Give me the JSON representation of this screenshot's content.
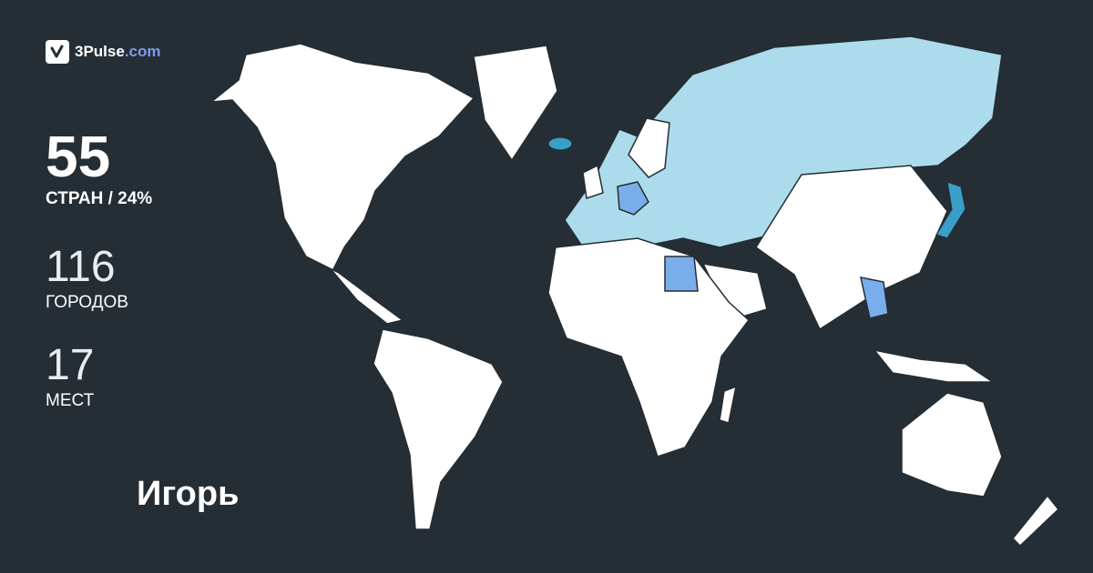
{
  "brand": {
    "name": "3Pulse",
    "domain": ".com",
    "icon": "pulse-check-icon"
  },
  "stats": {
    "countries": {
      "value": "55",
      "label": "СТРАН / 24%"
    },
    "cities": {
      "value": "116",
      "label": "ГОРОДОВ"
    },
    "places": {
      "value": "17",
      "label": "МЕСТ"
    }
  },
  "user": {
    "name": "Игорь"
  },
  "colors": {
    "background": "#252d35",
    "unvisited": "#ffffff",
    "visited_light": "#acdcec",
    "visited_mid": "#7aaeea",
    "visited_strong": "#3a9fc8",
    "brand_accent": "#7d9be8"
  }
}
